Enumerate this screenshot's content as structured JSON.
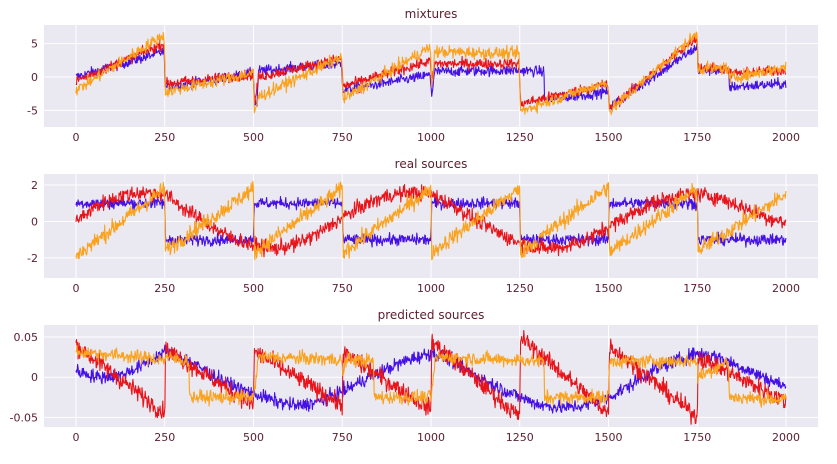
{
  "colors": {
    "background": "#ffffff",
    "axes_face": "#eae8f1",
    "grid": "#ffffff",
    "text": "#5a1e2e",
    "series": [
      "#4410e6",
      "#e8141a",
      "#fba21c"
    ]
  },
  "chart_data": [
    {
      "type": "line",
      "title": "mixtures",
      "xlabel": "",
      "ylabel": "",
      "xlim": [
        -90,
        2090
      ],
      "ylim": [
        -7.5,
        7.8
      ],
      "xticks": [
        0,
        250,
        500,
        750,
        1000,
        1250,
        1500,
        1750,
        2000
      ],
      "yticks": [
        -5,
        0,
        5
      ],
      "grid": true,
      "series": [
        {
          "color": "#4410e6",
          "noise": 0.55,
          "points": [
            [
              0,
              0.0
            ],
            [
              248,
              3.8
            ],
            [
              252,
              -1.6
            ],
            [
              500,
              0.6
            ],
            [
              502,
              -3.5
            ],
            [
              510,
              -4.2
            ],
            [
              514,
              0.9
            ],
            [
              748,
              2.0
            ],
            [
              752,
              -2.0
            ],
            [
              998,
              0.3
            ],
            [
              1002,
              -2.8
            ],
            [
              1010,
              0.8
            ],
            [
              1250,
              1.0
            ],
            [
              1252,
              1.0
            ],
            [
              1318,
              0.8
            ],
            [
              1320,
              -3.5
            ],
            [
              1498,
              -2.2
            ],
            [
              1502,
              -4.5
            ],
            [
              1750,
              4.5
            ],
            [
              1752,
              1.0
            ],
            [
              1838,
              1.0
            ],
            [
              1840,
              -1.5
            ],
            [
              2000,
              -1.0
            ]
          ]
        },
        {
          "color": "#e8141a",
          "noise": 0.55,
          "points": [
            [
              0,
              -0.6
            ],
            [
              248,
              5.0
            ],
            [
              252,
              -1.0
            ],
            [
              500,
              0.4
            ],
            [
              502,
              -4.5
            ],
            [
              514,
              0.0
            ],
            [
              748,
              2.8
            ],
            [
              752,
              -1.4
            ],
            [
              998,
              2.4
            ],
            [
              1002,
              -1.2
            ],
            [
              1010,
              2.0
            ],
            [
              1248,
              2.0
            ],
            [
              1252,
              -4.0
            ],
            [
              1320,
              -3.2
            ],
            [
              1498,
              -1.0
            ],
            [
              1502,
              -4.8
            ],
            [
              1750,
              6.0
            ],
            [
              1752,
              1.5
            ],
            [
              1838,
              1.2
            ],
            [
              1840,
              0.5
            ],
            [
              2000,
              1.0
            ]
          ]
        },
        {
          "color": "#fba21c",
          "noise": 0.65,
          "points": [
            [
              0,
              -2.0
            ],
            [
              248,
              6.3
            ],
            [
              252,
              -2.2
            ],
            [
              500,
              0.6
            ],
            [
              502,
              -5.5
            ],
            [
              514,
              -3.0
            ],
            [
              748,
              3.0
            ],
            [
              752,
              -3.3
            ],
            [
              998,
              4.5
            ],
            [
              1002,
              -2.0
            ],
            [
              1010,
              3.8
            ],
            [
              1248,
              3.5
            ],
            [
              1252,
              -5.2
            ],
            [
              1320,
              -3.8
            ],
            [
              1498,
              -0.8
            ],
            [
              1502,
              -5.2
            ],
            [
              1750,
              6.5
            ],
            [
              1752,
              1.3
            ],
            [
              1838,
              1.3
            ],
            [
              1840,
              -0.2
            ],
            [
              2000,
              1.5
            ]
          ]
        }
      ]
    },
    {
      "type": "line",
      "title": "real sources",
      "xlabel": "",
      "ylabel": "",
      "xlim": [
        -90,
        2090
      ],
      "ylim": [
        -3.1,
        2.6
      ],
      "xticks": [
        0,
        250,
        500,
        750,
        1000,
        1250,
        1500,
        1750,
        2000
      ],
      "yticks": [
        -2,
        0,
        2
      ],
      "grid": true,
      "series": [
        {
          "color": "#4410e6",
          "noise": 0.22,
          "points": [
            [
              0,
              1.0
            ],
            [
              250,
              1.0
            ],
            [
              252,
              -1.0
            ],
            [
              500,
              -1.0
            ],
            [
              502,
              1.0
            ],
            [
              750,
              1.0
            ],
            [
              752,
              -1.0
            ],
            [
              1000,
              -1.0
            ],
            [
              1002,
              1.0
            ],
            [
              1250,
              1.0
            ],
            [
              1252,
              -1.0
            ],
            [
              1500,
              -1.0
            ],
            [
              1502,
              1.0
            ],
            [
              1750,
              1.0
            ],
            [
              1752,
              -1.0
            ],
            [
              2000,
              -1.0
            ]
          ]
        },
        {
          "color": "#e8141a",
          "noise": 0.3,
          "points": [
            [
              0,
              0.0
            ],
            [
              62,
              0.9
            ],
            [
              125,
              1.4
            ],
            [
              187,
              1.6
            ],
            [
              250,
              1.5
            ],
            [
              312,
              0.6
            ],
            [
              375,
              -0.2
            ],
            [
              437,
              -0.9
            ],
            [
              500,
              -1.3
            ],
            [
              562,
              -1.5
            ],
            [
              625,
              -1.2
            ],
            [
              687,
              -0.6
            ],
            [
              750,
              0.2
            ],
            [
              812,
              0.9
            ],
            [
              875,
              1.4
            ],
            [
              937,
              1.6
            ],
            [
              1000,
              1.5
            ],
            [
              1062,
              0.9
            ],
            [
              1125,
              0.1
            ],
            [
              1187,
              -0.6
            ],
            [
              1250,
              -1.2
            ],
            [
              1312,
              -1.5
            ],
            [
              1375,
              -1.4
            ],
            [
              1437,
              -1.0
            ],
            [
              1500,
              -0.3
            ],
            [
              1562,
              0.4
            ],
            [
              1625,
              1.0
            ],
            [
              1687,
              1.4
            ],
            [
              1750,
              1.5
            ],
            [
              1812,
              1.3
            ],
            [
              1875,
              0.8
            ],
            [
              1937,
              0.3
            ],
            [
              2000,
              -0.1
            ]
          ]
        },
        {
          "color": "#fba21c",
          "noise": 0.32,
          "points": [
            [
              0,
              -1.9
            ],
            [
              250,
              1.8
            ],
            [
              252,
              -1.6
            ],
            [
              500,
              1.8
            ],
            [
              502,
              -1.7
            ],
            [
              750,
              1.8
            ],
            [
              752,
              -1.7
            ],
            [
              1000,
              1.8
            ],
            [
              1002,
              -1.7
            ],
            [
              1250,
              1.8
            ],
            [
              1252,
              -1.7
            ],
            [
              1500,
              1.9
            ],
            [
              1502,
              -1.7
            ],
            [
              1750,
              1.8
            ],
            [
              1752,
              -1.6
            ],
            [
              2000,
              1.5
            ]
          ]
        }
      ]
    },
    {
      "type": "line",
      "title": "predicted sources",
      "xlabel": "",
      "ylabel": "",
      "xlim": [
        -90,
        2090
      ],
      "ylim": [
        -0.062,
        0.065
      ],
      "xticks": [
        0,
        250,
        500,
        750,
        1000,
        1250,
        1500,
        1750,
        2000
      ],
      "yticks": [
        -0.05,
        0.0,
        0.05
      ],
      "grid": true,
      "series": [
        {
          "color": "#4410e6",
          "noise": 0.006,
          "points": [
            [
              0,
              0.008
            ],
            [
              62,
              0.0
            ],
            [
              125,
              0.002
            ],
            [
              187,
              0.015
            ],
            [
              250,
              0.032
            ],
            [
              312,
              0.022
            ],
            [
              375,
              0.005
            ],
            [
              437,
              -0.01
            ],
            [
              500,
              -0.02
            ],
            [
              562,
              -0.03
            ],
            [
              625,
              -0.036
            ],
            [
              687,
              -0.03
            ],
            [
              750,
              -0.018
            ],
            [
              812,
              -0.003
            ],
            [
              875,
              0.01
            ],
            [
              937,
              0.022
            ],
            [
              1000,
              0.03
            ],
            [
              1062,
              0.02
            ],
            [
              1125,
              0.002
            ],
            [
              1187,
              -0.012
            ],
            [
              1250,
              -0.025
            ],
            [
              1312,
              -0.035
            ],
            [
              1375,
              -0.038
            ],
            [
              1437,
              -0.035
            ],
            [
              1500,
              -0.025
            ],
            [
              1562,
              -0.01
            ],
            [
              1625,
              0.008
            ],
            [
              1687,
              0.02
            ],
            [
              1750,
              0.03
            ],
            [
              1812,
              0.025
            ],
            [
              1875,
              0.012
            ],
            [
              1937,
              0.0
            ],
            [
              2000,
              -0.012
            ]
          ]
        },
        {
          "color": "#e8141a",
          "noise": 0.008,
          "points": [
            [
              0,
              0.04
            ],
            [
              250,
              -0.045
            ],
            [
              252,
              0.035
            ],
            [
              500,
              -0.035
            ],
            [
              502,
              0.032
            ],
            [
              750,
              -0.035
            ],
            [
              752,
              0.03
            ],
            [
              1000,
              -0.04
            ],
            [
              1002,
              0.045
            ],
            [
              1250,
              -0.05
            ],
            [
              1252,
              0.05
            ],
            [
              1500,
              -0.045
            ],
            [
              1502,
              0.04
            ],
            [
              1750,
              -0.05
            ],
            [
              1752,
              0.025
            ],
            [
              2000,
              -0.03
            ]
          ]
        },
        {
          "color": "#fba21c",
          "noise": 0.006,
          "points": [
            [
              0,
              0.032
            ],
            [
              250,
              0.022
            ],
            [
              252,
              0.025
            ],
            [
              318,
              0.02
            ],
            [
              320,
              -0.025
            ],
            [
              500,
              -0.025
            ],
            [
              514,
              0.025
            ],
            [
              748,
              0.022
            ],
            [
              752,
              0.0
            ],
            [
              760,
              0.022
            ],
            [
              838,
              0.02
            ],
            [
              840,
              -0.025
            ],
            [
              1000,
              -0.025
            ],
            [
              1014,
              0.025
            ],
            [
              1318,
              0.02
            ],
            [
              1320,
              -0.025
            ],
            [
              1500,
              -0.025
            ],
            [
              1502,
              0.02
            ],
            [
              1750,
              0.02
            ],
            [
              1752,
              0.0
            ],
            [
              1838,
              0.02
            ],
            [
              1840,
              -0.025
            ],
            [
              2000,
              -0.028
            ]
          ]
        }
      ]
    }
  ]
}
